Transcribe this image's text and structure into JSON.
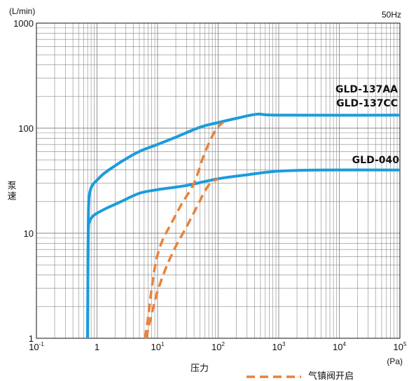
{
  "chart_data": {
    "type": "line",
    "units": {
      "y": "(L/min)",
      "x": "(Pa)",
      "frequency": "50Hz"
    },
    "xlabel": "压力",
    "ylabel": "泵速",
    "xscale": "log",
    "yscale": "log",
    "xlim": [
      0.1,
      100000
    ],
    "ylim": [
      1,
      1000
    ],
    "x_ticks": [
      {
        "base": "10",
        "exp": "-1"
      },
      {
        "base": "1",
        "exp": ""
      },
      {
        "base": "10",
        "exp": "1"
      },
      {
        "base": "10",
        "exp": "2"
      },
      {
        "base": "10",
        "exp": "3"
      },
      {
        "base": "10",
        "exp": "4"
      },
      {
        "base": "10",
        "exp": "5"
      }
    ],
    "y_ticks": [
      "1",
      "10",
      "100",
      "1000"
    ],
    "grid": true,
    "legend": {
      "label": "气镇阀开启",
      "position": "bottom-right"
    },
    "colors": {
      "pump_curve": "#1a9cdc",
      "gas_ballast": "#e9823a",
      "grid": "#888888"
    },
    "series": [
      {
        "name": "GLD-137AA",
        "label_line2": "GLD-137CC",
        "style": "solid",
        "x": [
          0.7,
          0.71,
          0.72,
          0.74,
          0.78,
          0.85,
          1.0,
          1.3,
          2.0,
          3.0,
          5.0,
          10,
          20,
          50,
          100,
          200,
          450,
          1000,
          100000
        ],
        "y": [
          1,
          5,
          15,
          22,
          26,
          29,
          32,
          37,
          44,
          51,
          60,
          70,
          82,
          102,
          113,
          124,
          136,
          133,
          133
        ]
      },
      {
        "name": "GLD-040",
        "style": "solid",
        "x": [
          0.7,
          0.71,
          0.72,
          0.74,
          0.78,
          0.85,
          1.0,
          1.5,
          2.5,
          5.0,
          10,
          30,
          100,
          300,
          1000,
          5000,
          100000
        ],
        "y": [
          1,
          5,
          11,
          12.5,
          13.5,
          14.5,
          15.5,
          17.5,
          20,
          24,
          26,
          28.5,
          33,
          36,
          39,
          40,
          40
        ]
      },
      {
        "name": "",
        "style": "dashed",
        "x": [
          6.2,
          7.0,
          8.0,
          9.5,
          12,
          17,
          25,
          40,
          60,
          90,
          120
        ],
        "y": [
          1,
          1.6,
          3,
          5.5,
          8.5,
          12.5,
          19,
          30,
          58,
          95,
          113
        ]
      },
      {
        "name": "",
        "style": "dashed",
        "x": [
          6.5,
          8.0,
          10,
          14,
          20,
          30,
          45,
          60,
          75,
          100
        ],
        "y": [
          1,
          1.7,
          2.8,
          4.8,
          7.5,
          11.5,
          18,
          25,
          30,
          33
        ]
      }
    ]
  }
}
